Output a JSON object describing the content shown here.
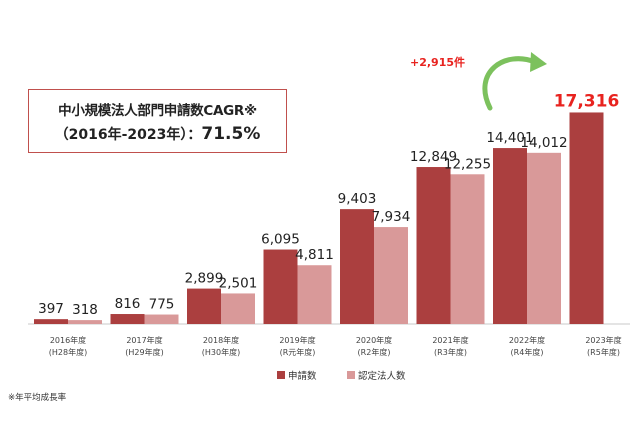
{
  "callout": {
    "line1": "中小規模法人部門申請数CAGR※",
    "line2_prefix": "（2016年-2023年）：",
    "line2_value": "71.5%"
  },
  "footnote": "※年平均成長率",
  "growth_annotation": "+2,915件",
  "colors": {
    "applications": "#ab3f3f",
    "certified": "#d99999",
    "highlight_text": "#e8231f",
    "arrow": "#7cc15d",
    "box_border": "#c0504d"
  },
  "chart_data": {
    "type": "bar",
    "categories": [
      [
        "2016年度",
        "(H28年度)"
      ],
      [
        "2017年度",
        "(H29年度)"
      ],
      [
        "2018年度",
        "(H30年度)"
      ],
      [
        "2019年度",
        "(R元年度)"
      ],
      [
        "2020年度",
        "(R2年度)"
      ],
      [
        "2021年度",
        "(R3年度)"
      ],
      [
        "2022年度",
        "(R4年度)"
      ],
      [
        "2023年度",
        "(R5年度)"
      ]
    ],
    "series": [
      {
        "name": "申請数",
        "values": [
          397,
          816,
          2899,
          6095,
          9403,
          12849,
          14401,
          17316
        ],
        "labels": [
          "397",
          "816",
          "2,899",
          "6,095",
          "9,403",
          "12,849",
          "14,401",
          "17,316"
        ]
      },
      {
        "name": "認定法人数",
        "values": [
          318,
          775,
          2501,
          4811,
          7934,
          12255,
          14012,
          null
        ],
        "labels": [
          "318",
          "775",
          "2,501",
          "4,811",
          "7,934",
          "12,255",
          "14,012",
          ""
        ]
      }
    ],
    "ylim": [
      0,
      18500
    ],
    "grid": false,
    "legend_position": "bottom"
  }
}
